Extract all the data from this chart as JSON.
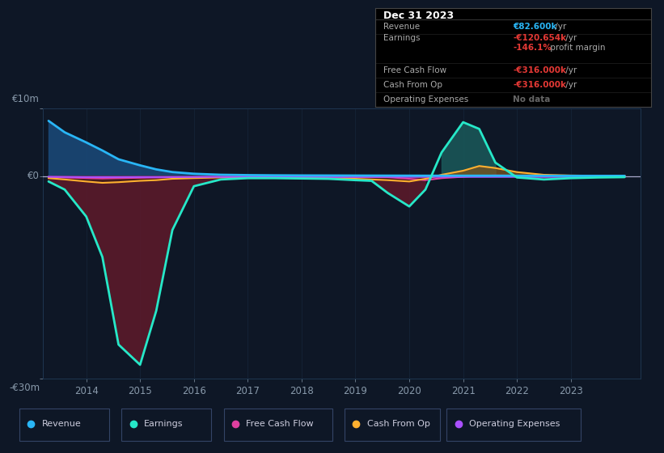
{
  "bg_color": "#0e1726",
  "plot_bg_color": "#0e1726",
  "ylim": [
    -30000000,
    10000000
  ],
  "xlim": [
    2013.2,
    2024.3
  ],
  "xticks": [
    2014,
    2015,
    2016,
    2017,
    2018,
    2019,
    2020,
    2021,
    2022,
    2023
  ],
  "grid_color": "#1e3550",
  "legend_labels": [
    "Revenue",
    "Earnings",
    "Free Cash Flow",
    "Cash From Op",
    "Operating Expenses"
  ],
  "legend_colors": [
    "#29b6f6",
    "#26e8c8",
    "#e040a0",
    "#ffb030",
    "#aa50ff"
  ],
  "title_box_title": "Dec 31 2023",
  "title_box_rows": [
    {
      "label": "Revenue",
      "val": "€82.600k",
      "suffix": " /yr",
      "val_color": "#29b6f6",
      "sub_val": null,
      "sub_suffix": null
    },
    {
      "label": "Earnings",
      "val": "-€120.654k",
      "suffix": " /yr",
      "val_color": "#e53935",
      "sub_val": "-146.1%",
      "sub_suffix": " profit margin"
    },
    {
      "label": "Free Cash Flow",
      "val": "-€316.000k",
      "suffix": " /yr",
      "val_color": "#e53935",
      "sub_val": null,
      "sub_suffix": null
    },
    {
      "label": "Cash From Op",
      "val": "-€316.000k",
      "suffix": " /yr",
      "val_color": "#e53935",
      "sub_val": null,
      "sub_suffix": null
    },
    {
      "label": "Operating Expenses",
      "val": "No data",
      "suffix": "",
      "val_color": "#666666",
      "sub_val": null,
      "sub_suffix": null
    }
  ],
  "series": {
    "years": [
      2013.3,
      2013.6,
      2014.0,
      2014.3,
      2014.6,
      2015.0,
      2015.3,
      2015.6,
      2016.0,
      2016.5,
      2017.0,
      2017.5,
      2018.0,
      2018.5,
      2019.0,
      2019.3,
      2019.6,
      2020.0,
      2020.3,
      2020.6,
      2021.0,
      2021.3,
      2021.6,
      2022.0,
      2022.5,
      2023.0,
      2023.5,
      2024.0
    ],
    "revenue": [
      8200000,
      6500000,
      5000000,
      3800000,
      2500000,
      1600000,
      1000000,
      600000,
      350000,
      200000,
      150000,
      120000,
      100000,
      90000,
      80000,
      75000,
      70000,
      65000,
      60000,
      60000,
      60000,
      60000,
      55000,
      50000,
      45000,
      40000,
      38000,
      36000
    ],
    "earnings": [
      -800000,
      -2000000,
      -6000000,
      -12000000,
      -25000000,
      -28000000,
      -20000000,
      -8000000,
      -1500000,
      -500000,
      -300000,
      -300000,
      -350000,
      -400000,
      -600000,
      -700000,
      -2500000,
      -4500000,
      -2000000,
      3500000,
      8000000,
      7000000,
      2000000,
      -200000,
      -500000,
      -300000,
      -200000,
      -150000
    ],
    "free_cash_flow": [
      -150000,
      -200000,
      -300000,
      -350000,
      -300000,
      -250000,
      -200000,
      -180000,
      -150000,
      -120000,
      -100000,
      -90000,
      -100000,
      -110000,
      -120000,
      -130000,
      -160000,
      -400000,
      -600000,
      -300000,
      -100000,
      50000,
      100000,
      80000,
      50000,
      20000,
      10000,
      5000
    ],
    "cash_from_op": [
      -300000,
      -500000,
      -800000,
      -1000000,
      -900000,
      -700000,
      -600000,
      -400000,
      -300000,
      -200000,
      -200000,
      -250000,
      -300000,
      -350000,
      -400000,
      -500000,
      -600000,
      -800000,
      -400000,
      200000,
      800000,
      1500000,
      1200000,
      600000,
      200000,
      100000,
      50000,
      30000
    ],
    "op_expenses": [
      -100000,
      -120000,
      -150000,
      -150000,
      -150000,
      -140000,
      -140000,
      -130000,
      -130000,
      -120000,
      -110000,
      -110000,
      -110000,
      -115000,
      -120000,
      -120000,
      -115000,
      -110000,
      -110000,
      -110000,
      -110000,
      -110000,
      -110000,
      -110000,
      -110000,
      -110000,
      -110000,
      -110000
    ]
  }
}
